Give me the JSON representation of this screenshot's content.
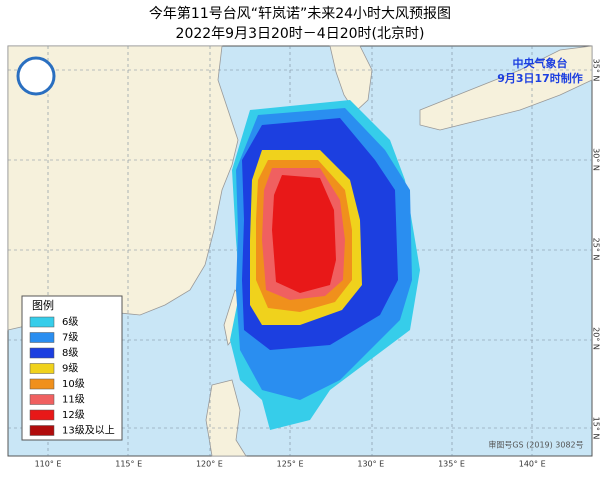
{
  "header": {
    "title": "今年第11号台风“轩岚诺”未来24小时大风预报图",
    "subtitle": "2022年9月3日20时－4日20时(北京时)"
  },
  "agency": {
    "name": "中央气象台",
    "issued": "9月3日17时制作"
  },
  "legend": {
    "title": "图例",
    "items": [
      {
        "label": "6级",
        "color": "#36cdea"
      },
      {
        "label": "7级",
        "color": "#2a8ef0"
      },
      {
        "label": "8级",
        "color": "#1c3fe0"
      },
      {
        "label": "9级",
        "color": "#f0d21c"
      },
      {
        "label": "10级",
        "color": "#f0901c"
      },
      {
        "label": "11级",
        "color": "#f06060"
      },
      {
        "label": "12级",
        "color": "#e81818"
      },
      {
        "label": "13级及以上",
        "color": "#b00c0c"
      }
    ]
  },
  "axes": {
    "longitude": [
      "110° E",
      "115° E",
      "120° E",
      "125° E",
      "130° E",
      "135° E",
      "140° E"
    ],
    "latitude": [
      "35° N",
      "30° N",
      "25° N",
      "20° N",
      "15° N"
    ]
  },
  "footer": {
    "approval": "审图号GS (2019) 3082号"
  }
}
